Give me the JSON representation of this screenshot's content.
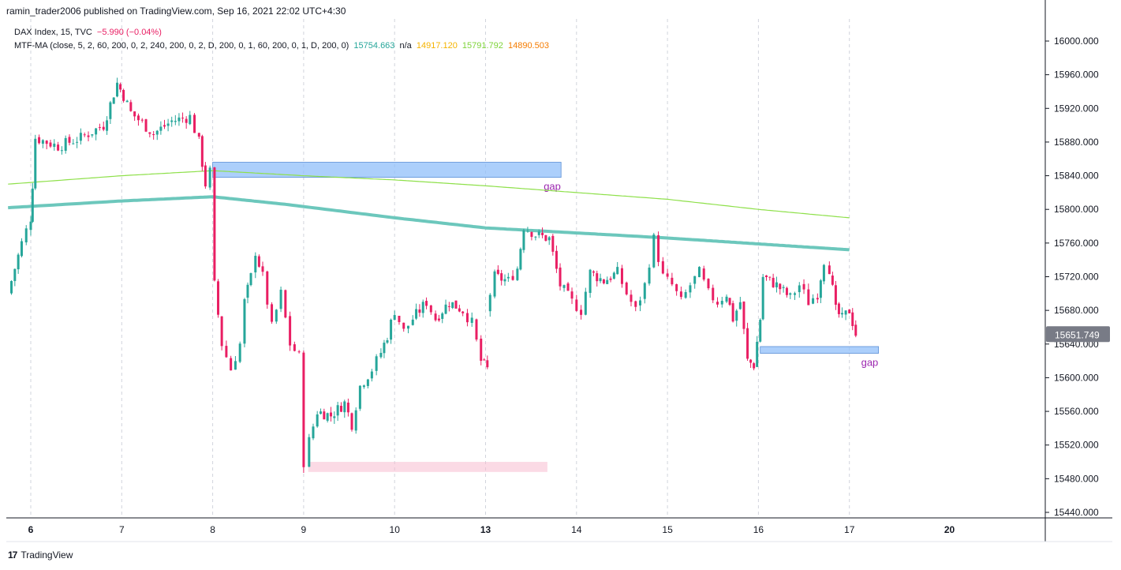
{
  "header": {
    "publisher": "ramin_trader2006 published on TradingView.com, Sep 16, 2021 22:02 UTC+4:30"
  },
  "legend": {
    "symbol": "DAX Index, 15, TVC",
    "change": "−5.990 (−0.04%)",
    "indicator": "MTF-MA (close, 5, 2, 60, 200, 0, 2, 240, 200, 0, 2, D, 200, 0, 1, 60, 200, 0, 1, D, 200, 0)",
    "values": [
      {
        "text": "15754.663",
        "color": "#26a69a"
      },
      {
        "text": "n/a",
        "color": "#131722"
      },
      {
        "text": "14917.120",
        "color": "#f5b400"
      },
      {
        "text": "15791.792",
        "color": "#7fd43a"
      },
      {
        "text": "14890.503",
        "color": "#f57c00"
      }
    ]
  },
  "brand": {
    "logo": "17",
    "label": "TradingView"
  },
  "colors": {
    "up": "#26a69a",
    "down": "#e91e63",
    "ma_main": "#6cc7bc",
    "ma_light": "#8ee04a",
    "gap_zone": "#90bff9",
    "pink_zone": "#f8bbd0",
    "gap_text": "#9c27b0",
    "grid": "#d1d4dc",
    "price_badge": "#787b86"
  },
  "chart_data": {
    "type": "candlestick",
    "symbol": "DAX Index",
    "interval": "15",
    "ylim": [
      15440,
      16000
    ],
    "y_ticks": [
      16000,
      15960,
      15920,
      15880,
      15840,
      15800,
      15760,
      15720,
      15680,
      15640,
      15600,
      15560,
      15520,
      15480,
      15440
    ],
    "y_tick_labels": [
      "16000.000",
      "15960.000",
      "15920.000",
      "15880.000",
      "15840.000",
      "15800.000",
      "15760.000",
      "15720.000",
      "15680.000",
      "15640.000",
      "15600.000",
      "15560.000",
      "15520.000",
      "15480.000",
      "15440.000"
    ],
    "x_ticks": [
      {
        "label": "6",
        "day": 0,
        "bold": true
      },
      {
        "label": "7",
        "day": 1
      },
      {
        "label": "8",
        "day": 2
      },
      {
        "label": "9",
        "day": 3
      },
      {
        "label": "10",
        "day": 4
      },
      {
        "label": "13",
        "day": 5,
        "bold": true
      },
      {
        "label": "14",
        "day": 6
      },
      {
        "label": "15",
        "day": 7
      },
      {
        "label": "16",
        "day": 8
      },
      {
        "label": "17",
        "day": 9
      },
      {
        "label": "20",
        "day": 10.1,
        "bold": true
      }
    ],
    "last_price": 15651.749,
    "last_price_label": "15651.749",
    "annotations": [
      {
        "label": "gap",
        "type": "zone",
        "day_start": 2.0,
        "day_end": 5.83,
        "y_low": 15838,
        "y_high": 15856,
        "color": "#90bff9"
      },
      {
        "label": "gap",
        "type": "zone",
        "day_start": 8.02,
        "day_end": 9.32,
        "y_low": 15629,
        "y_high": 15637,
        "color": "#90bff9"
      },
      {
        "label": "",
        "type": "zone",
        "day_start": 3.05,
        "day_end": 5.68,
        "y_low": 15488,
        "y_high": 15500,
        "color": "#f8bbd0"
      }
    ],
    "series": [
      {
        "name": "DAX Index",
        "closes": [
          {
            "day": -0.25,
            "price": 15700
          },
          {
            "day": -0.1,
            "price": 15760
          },
          {
            "day": 0.0,
            "price": 15790
          },
          {
            "day": 0.02,
            "price": 15830
          },
          {
            "day": 0.05,
            "price": 15885
          },
          {
            "day": 0.3,
            "price": 15875
          },
          {
            "day": 0.55,
            "price": 15885
          },
          {
            "day": 0.8,
            "price": 15900
          },
          {
            "day": 0.95,
            "price": 15950
          },
          {
            "day": 1.02,
            "price": 15935
          },
          {
            "day": 1.1,
            "price": 15915
          },
          {
            "day": 1.35,
            "price": 15890
          },
          {
            "day": 1.55,
            "price": 15905
          },
          {
            "day": 1.75,
            "price": 15910
          },
          {
            "day": 1.85,
            "price": 15880
          },
          {
            "day": 1.92,
            "price": 15830
          },
          {
            "day": 1.97,
            "price": 15845
          },
          {
            "day": 2.02,
            "price": 15710
          },
          {
            "day": 2.1,
            "price": 15640
          },
          {
            "day": 2.2,
            "price": 15610
          },
          {
            "day": 2.3,
            "price": 15640
          },
          {
            "day": 2.35,
            "price": 15690
          },
          {
            "day": 2.42,
            "price": 15720
          },
          {
            "day": 2.47,
            "price": 15750
          },
          {
            "day": 2.55,
            "price": 15720
          },
          {
            "day": 2.65,
            "price": 15660
          },
          {
            "day": 2.75,
            "price": 15700
          },
          {
            "day": 2.85,
            "price": 15640
          },
          {
            "day": 2.95,
            "price": 15625
          },
          {
            "day": 3.0,
            "price": 15500
          },
          {
            "day": 3.06,
            "price": 15525
          },
          {
            "day": 3.15,
            "price": 15560
          },
          {
            "day": 3.3,
            "price": 15555
          },
          {
            "day": 3.45,
            "price": 15570
          },
          {
            "day": 3.53,
            "price": 15545
          },
          {
            "day": 3.62,
            "price": 15590
          },
          {
            "day": 3.75,
            "price": 15610
          },
          {
            "day": 3.85,
            "price": 15630
          },
          {
            "day": 3.92,
            "price": 15650
          },
          {
            "day": 4.0,
            "price": 15680
          },
          {
            "day": 4.1,
            "price": 15655
          },
          {
            "day": 4.2,
            "price": 15670
          },
          {
            "day": 4.35,
            "price": 15690
          },
          {
            "day": 4.45,
            "price": 15670
          },
          {
            "day": 4.6,
            "price": 15690
          },
          {
            "day": 4.75,
            "price": 15680
          },
          {
            "day": 4.85,
            "price": 15665
          },
          {
            "day": 4.95,
            "price": 15620
          },
          {
            "day": 5.02,
            "price": 15610
          }
        ]
      },
      {
        "name": "",
        "closes": [
          {
            "day": 5.0,
            "price": 15680
          },
          {
            "day": 5.1,
            "price": 15720
          },
          {
            "day": 5.25,
            "price": 15715
          },
          {
            "day": 5.35,
            "price": 15730
          },
          {
            "day": 5.42,
            "price": 15780
          },
          {
            "day": 5.55,
            "price": 15770
          },
          {
            "day": 5.7,
            "price": 15765
          },
          {
            "day": 5.82,
            "price": 15710
          },
          {
            "day": 5.95,
            "price": 15690
          },
          {
            "day": 6.05,
            "price": 15680
          },
          {
            "day": 6.15,
            "price": 15725
          },
          {
            "day": 6.3,
            "price": 15715
          },
          {
            "day": 6.45,
            "price": 15725
          },
          {
            "day": 6.55,
            "price": 15700
          },
          {
            "day": 6.65,
            "price": 15680
          },
          {
            "day": 6.75,
            "price": 15710
          },
          {
            "day": 6.85,
            "price": 15765
          },
          {
            "day": 6.95,
            "price": 15720
          },
          {
            "day": 7.05,
            "price": 15710
          },
          {
            "day": 7.15,
            "price": 15690
          },
          {
            "day": 7.25,
            "price": 15710
          },
          {
            "day": 7.35,
            "price": 15725
          },
          {
            "day": 7.45,
            "price": 15700
          },
          {
            "day": 7.55,
            "price": 15690
          },
          {
            "day": 7.65,
            "price": 15700
          },
          {
            "day": 7.72,
            "price": 15670
          },
          {
            "day": 7.8,
            "price": 15690
          },
          {
            "day": 7.88,
            "price": 15620
          },
          {
            "day": 7.95,
            "price": 15615
          },
          {
            "day": 8.02,
            "price": 15670
          },
          {
            "day": 8.05,
            "price": 15720
          },
          {
            "day": 8.2,
            "price": 15710
          },
          {
            "day": 8.35,
            "price": 15695
          },
          {
            "day": 8.45,
            "price": 15710
          },
          {
            "day": 8.55,
            "price": 15690
          },
          {
            "day": 8.65,
            "price": 15700
          },
          {
            "day": 8.72,
            "price": 15740
          },
          {
            "day": 8.78,
            "price": 15730
          },
          {
            "day": 8.85,
            "price": 15680
          },
          {
            "day": 8.92,
            "price": 15670
          },
          {
            "day": 9.0,
            "price": 15680
          },
          {
            "day": 9.07,
            "price": 15652
          }
        ]
      }
    ],
    "ma_lines": [
      {
        "name": "",
        "color": "#6cc7bc",
        "points": [
          {
            "day": -0.25,
            "price": 15802
          },
          {
            "day": 1.0,
            "price": 15810
          },
          {
            "day": 2.0,
            "price": 15815
          },
          {
            "day": 2.8,
            "price": 15806
          },
          {
            "day": 4.0,
            "price": 15790
          },
          {
            "day": 5.0,
            "price": 15778
          },
          {
            "day": 6.0,
            "price": 15772
          },
          {
            "day": 7.0,
            "price": 15766
          },
          {
            "day": 8.0,
            "price": 15759
          },
          {
            "day": 9.0,
            "price": 15752
          }
        ]
      },
      {
        "name": "",
        "color": "#8ee04a",
        "points": [
          {
            "day": -0.25,
            "price": 15830
          },
          {
            "day": 1.0,
            "price": 15840
          },
          {
            "day": 2.0,
            "price": 15846
          },
          {
            "day": 3.0,
            "price": 15840
          },
          {
            "day": 4.0,
            "price": 15835
          },
          {
            "day": 5.0,
            "price": 15828
          },
          {
            "day": 6.0,
            "price": 15820
          },
          {
            "day": 7.0,
            "price": 15812
          },
          {
            "day": 8.0,
            "price": 15800
          },
          {
            "day": 9.0,
            "price": 15790
          }
        ]
      }
    ]
  }
}
